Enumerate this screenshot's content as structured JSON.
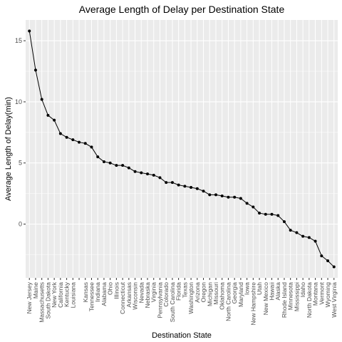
{
  "chart_data": {
    "type": "line",
    "title": "Average Length of Delay per Destination State",
    "xlabel": "Destination State",
    "ylabel": "Average Length of Delay(min)",
    "ylim": [
      -4.4,
      16.7
    ],
    "yticks": [
      0,
      5,
      10,
      15
    ],
    "grid": true,
    "background": "#ebebeb",
    "gridline_color": "#ffffff",
    "line_color": "#000000",
    "point_color": "#000000",
    "categories": [
      "New Jersey",
      "Maine",
      "Massachusetts",
      "South Dakota",
      "New York",
      "California",
      "Kentucky",
      "Louisiana",
      "",
      "Kansas",
      "Tennessee",
      "Indiana",
      "Alabama",
      "Ohio",
      "Illinois",
      "Connecticut",
      "Arkansas",
      "Wisconsin",
      "Nevada",
      "Nebraska",
      "Virginia",
      "Pennsylvania",
      "Colorado",
      "South Carolina",
      "Florida",
      "Texas",
      "Washington",
      "Arizona",
      "Oregon",
      "Michigan",
      "Missouri",
      "Oklahoma",
      "North Carolina",
      "Georgia",
      "Maryland",
      "Iowa",
      "New Hampshire",
      "Utah",
      "New Mexico",
      "Hawaii",
      "Alaska",
      "Rhode Island",
      "Minnesota",
      "Mississippi",
      "Idaho",
      "North Dakota",
      "Montana",
      "Vermont",
      "Wyoming",
      "West Virginia"
    ],
    "series": [
      {
        "values": [
          15.8,
          12.6,
          10.2,
          8.9,
          8.5,
          7.4,
          7.1,
          6.9,
          6.7,
          6.6,
          6.3,
          5.5,
          5.1,
          5.0,
          4.8,
          4.8,
          4.6,
          4.3,
          4.2,
          4.1,
          4.0,
          3.8,
          3.4,
          3.4,
          3.2,
          3.1,
          3.0,
          2.9,
          2.7,
          2.4,
          2.4,
          2.3,
          2.2,
          2.2,
          2.1,
          1.7,
          1.4,
          0.9,
          0.8,
          0.8,
          0.7,
          0.2,
          -0.5,
          -0.7,
          -1.0,
          -1.1,
          -1.4,
          -2.6,
          -3.0,
          -3.5
        ]
      }
    ]
  }
}
